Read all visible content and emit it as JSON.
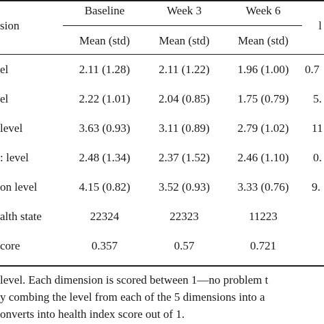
{
  "table": {
    "header": {
      "dimension": "sion",
      "baseline": "Baseline",
      "week3": "Week 3",
      "week6": "Week 6",
      "cut": "l",
      "sub_baseline": "Mean (std)",
      "sub_week3": "Mean (std)",
      "sub_week6": "Mean (std)"
    },
    "rows": [
      {
        "label": "el",
        "baseline": "2.11 (1.28)",
        "week3": "2.11 (1.22)",
        "week6": "1.96 (1.00)",
        "cut": "0.7"
      },
      {
        "label": "el",
        "baseline": "2.22 (1.01)",
        "week3": "2.04 (0.85)",
        "week6": "1.75 (0.79)",
        "cut": "5."
      },
      {
        "label": "level",
        "baseline": "3.63 (0.93)",
        "week3": "3.11 (0.89)",
        "week6": "2.79 (1.02)",
        "cut": "11"
      },
      {
        "label": ": level",
        "baseline": "2.48 (1.34)",
        "week3": "2.37 (1.52)",
        "week6": "2.46 (1.10)",
        "cut": "0."
      },
      {
        "label": "on level",
        "baseline": "4.15 (0.82)",
        "week3": "3.52 (0.93)",
        "week6": "3.33 (0.76)",
        "cut": "9."
      },
      {
        "label": "alth state",
        "baseline": "22324",
        "week3": "22323",
        "week6": "11223",
        "cut": ""
      },
      {
        "label": "core",
        "baseline": "0.357",
        "week3": "0.57",
        "week6": "0.721",
        "cut": ""
      }
    ]
  },
  "footnote": {
    "line1": " level. Each dimension is scored between 1—no problem t",
    "line2": "y combing the level from each of the 5 dimensions into a",
    "line3": "onverts into health index score out of 1."
  }
}
